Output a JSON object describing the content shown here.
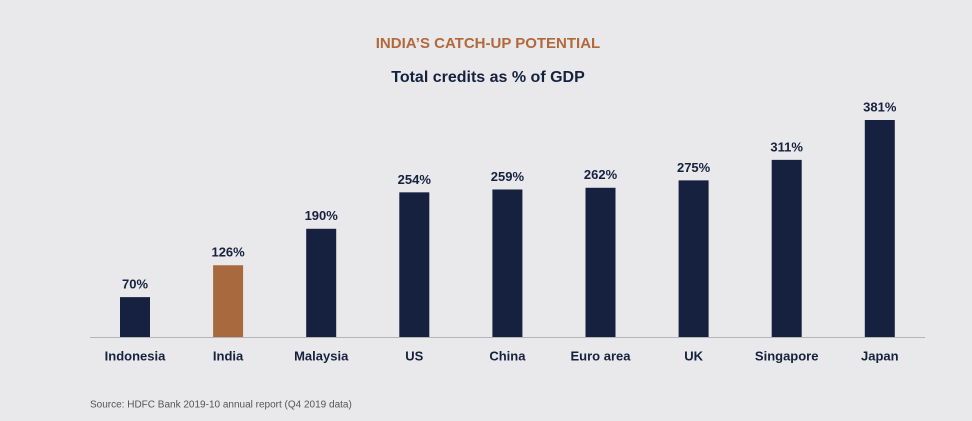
{
  "chart_data": {
    "type": "bar",
    "title": "INDIA’S CATCH-UP POTENTIAL",
    "subtitle": "Total credits as % of GDP",
    "categories": [
      "Indonesia",
      "India",
      "Malaysia",
      "US",
      "China",
      "Euro area",
      "UK",
      "Singapore",
      "Japan"
    ],
    "values": [
      70,
      126,
      190,
      254,
      259,
      262,
      275,
      311,
      381
    ],
    "value_labels": [
      "70%",
      "126%",
      "190%",
      "254%",
      "259%",
      "262%",
      "275%",
      "311%",
      "381%"
    ],
    "colors": [
      "#15213f",
      "#a8693e",
      "#15213f",
      "#15213f",
      "#15213f",
      "#15213f",
      "#15213f",
      "#15213f",
      "#15213f"
    ],
    "source": "Source: HDFC Bank 2019-10 annual report (Q4 2019 data)"
  }
}
